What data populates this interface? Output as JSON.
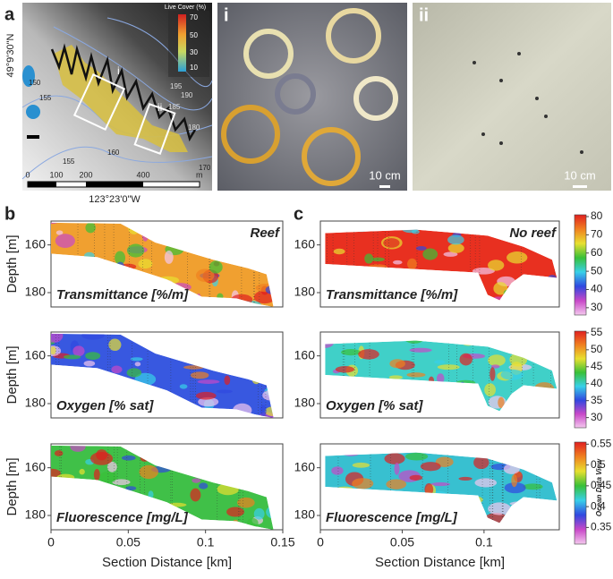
{
  "panel_a": {
    "label": "a",
    "legend_title": "Live Cover (%)",
    "legend_ticks": [
      70,
      50,
      30,
      10
    ],
    "lat_label": "49°9'30\"N",
    "lon_label": "123°23'0\"W",
    "scale_ticks": [
      0,
      100,
      200,
      400
    ],
    "scale_unit": "m",
    "contour_labels": [
      "150",
      "155",
      "195",
      "190",
      "185",
      "180",
      "155",
      "160",
      "170"
    ],
    "box_labels": [
      "i",
      "ii"
    ]
  },
  "photo_i": {
    "label": "i",
    "scale": "10 cm"
  },
  "photo_ii": {
    "label": "ii",
    "scale": "10 cm"
  },
  "chart_data": [
    {
      "type": "section",
      "label": "b",
      "annotation": "Reef",
      "title": "Transmittance [%/m]",
      "ylabel": "Depth [m]",
      "ylim": [
        150,
        186
      ],
      "yticks": [
        160,
        180
      ],
      "xlim": [
        0,
        0.15
      ]
    },
    {
      "type": "section",
      "label": "c",
      "annotation": "No reef",
      "title": "Transmittance [%/m]",
      "ylim": [
        150,
        186
      ],
      "yticks": [
        160,
        180
      ],
      "xlim": [
        0,
        0.146
      ]
    },
    {
      "type": "section",
      "title": "Oxygen [% sat]",
      "ylabel": "Depth [m]",
      "ylim": [
        150,
        186
      ],
      "yticks": [
        160,
        180
      ],
      "xlim": [
        0,
        0.15
      ]
    },
    {
      "type": "section",
      "title": "Oxygen [% sat]",
      "ylim": [
        150,
        186
      ],
      "yticks": [
        160,
        180
      ],
      "xlim": [
        0,
        0.146
      ]
    },
    {
      "type": "section",
      "title": "Fluorescence [mg/L]",
      "ylabel": "Depth [m]",
      "xlabel": "Section Distance [km]",
      "ylim": [
        150,
        186
      ],
      "yticks": [
        160,
        180
      ],
      "xlim": [
        0,
        0.15
      ],
      "xticks": [
        0,
        0.05,
        0.1,
        0.15
      ]
    },
    {
      "type": "section",
      "title": "Fluorescence [mg/L]",
      "xlabel": "Section Distance [km]",
      "ylim": [
        150,
        186
      ],
      "yticks": [
        160,
        180
      ],
      "xlim": [
        0,
        0.146
      ],
      "xticks": [
        0,
        0.05,
        0.1
      ]
    }
  ],
  "colorbars": [
    {
      "lim": [
        26,
        81
      ],
      "ticks": [
        30,
        40,
        50,
        60,
        70,
        80
      ],
      "colors": [
        "#f4c8ee",
        "#c848c8",
        "#3048e0",
        "#38d0e8",
        "#38c038",
        "#e8e030",
        "#f08020",
        "#e02020"
      ]
    },
    {
      "lim": [
        27,
        55.5
      ],
      "ticks": [
        30,
        35,
        40,
        45,
        50,
        55
      ],
      "colors": [
        "#f4c8ee",
        "#c848c8",
        "#3048e0",
        "#38d0e8",
        "#38c038",
        "#e8e030",
        "#f08020",
        "#e02020"
      ]
    },
    {
      "lim": [
        0.31,
        0.555
      ],
      "ticks": [
        0.35,
        0.4,
        0.45,
        0.5,
        0.55
      ],
      "colors": [
        "#f4c8ee",
        "#c848c8",
        "#3048e0",
        "#38d0e8",
        "#38c038",
        "#e8e030",
        "#f08020",
        "#e02020"
      ]
    }
  ],
  "colorbar_note": "Ocean Data View"
}
